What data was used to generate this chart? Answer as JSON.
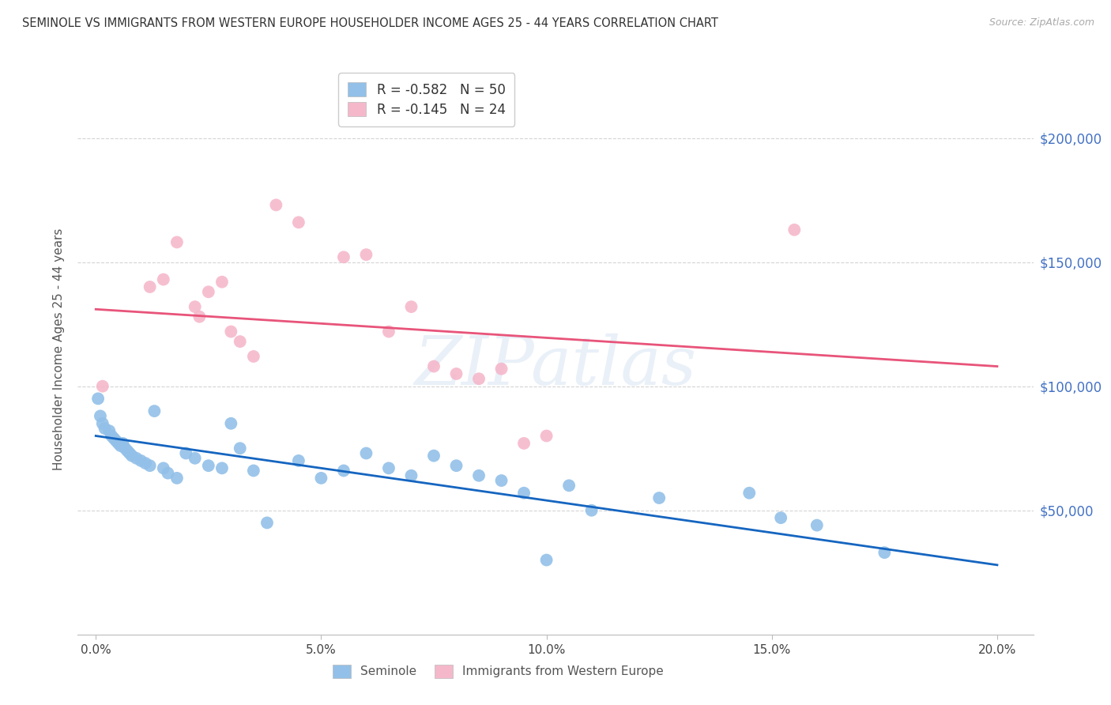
{
  "title": "SEMINOLE VS IMMIGRANTS FROM WESTERN EUROPE HOUSEHOLDER INCOME AGES 25 - 44 YEARS CORRELATION CHART",
  "source": "Source: ZipAtlas.com",
  "xlabel_ticks": [
    "0.0%",
    "5.0%",
    "10.0%",
    "15.0%",
    "20.0%"
  ],
  "xlabel_tick_vals": [
    0.0,
    5.0,
    10.0,
    15.0,
    20.0
  ],
  "ylabel_ticks": [
    "$50,000",
    "$100,000",
    "$150,000",
    "$200,000"
  ],
  "ylabel_tick_vals": [
    50000,
    100000,
    150000,
    200000
  ],
  "ylabel_label": "Householder Income Ages 25 - 44 years",
  "xlim": [
    -0.4,
    20.8
  ],
  "ylim": [
    0,
    230000
  ],
  "legend1_text": "R = -0.582   N = 50",
  "legend2_text": "R = -0.145   N = 24",
  "legend_labels": [
    "Seminole",
    "Immigrants from Western Europe"
  ],
  "blue_color": "#92c0e8",
  "pink_color": "#f5b8cb",
  "line_blue": "#1565c0",
  "line_pink": "#e8547a",
  "blue_scatter": [
    [
      0.05,
      95000
    ],
    [
      0.1,
      88000
    ],
    [
      0.15,
      85000
    ],
    [
      0.2,
      83000
    ],
    [
      0.3,
      82000
    ],
    [
      0.35,
      80000
    ],
    [
      0.4,
      79000
    ],
    [
      0.45,
      78000
    ],
    [
      0.5,
      77000
    ],
    [
      0.55,
      76000
    ],
    [
      0.6,
      77000
    ],
    [
      0.65,
      75000
    ],
    [
      0.7,
      74000
    ],
    [
      0.75,
      73000
    ],
    [
      0.8,
      72000
    ],
    [
      0.9,
      71000
    ],
    [
      1.0,
      70000
    ],
    [
      1.1,
      69000
    ],
    [
      1.2,
      68000
    ],
    [
      1.3,
      90000
    ],
    [
      1.5,
      67000
    ],
    [
      1.6,
      65000
    ],
    [
      1.8,
      63000
    ],
    [
      2.0,
      73000
    ],
    [
      2.2,
      71000
    ],
    [
      2.5,
      68000
    ],
    [
      2.8,
      67000
    ],
    [
      3.0,
      85000
    ],
    [
      3.2,
      75000
    ],
    [
      3.5,
      66000
    ],
    [
      3.8,
      45000
    ],
    [
      4.5,
      70000
    ],
    [
      5.0,
      63000
    ],
    [
      5.5,
      66000
    ],
    [
      6.0,
      73000
    ],
    [
      6.5,
      67000
    ],
    [
      7.0,
      64000
    ],
    [
      7.5,
      72000
    ],
    [
      8.0,
      68000
    ],
    [
      8.5,
      64000
    ],
    [
      9.0,
      62000
    ],
    [
      9.5,
      57000
    ],
    [
      10.0,
      30000
    ],
    [
      10.5,
      60000
    ],
    [
      11.0,
      50000
    ],
    [
      12.5,
      55000
    ],
    [
      14.5,
      57000
    ],
    [
      15.2,
      47000
    ],
    [
      16.0,
      44000
    ],
    [
      17.5,
      33000
    ]
  ],
  "pink_scatter": [
    [
      0.15,
      100000
    ],
    [
      1.2,
      140000
    ],
    [
      1.5,
      143000
    ],
    [
      1.8,
      158000
    ],
    [
      2.2,
      132000
    ],
    [
      2.3,
      128000
    ],
    [
      2.5,
      138000
    ],
    [
      2.8,
      142000
    ],
    [
      3.0,
      122000
    ],
    [
      3.2,
      118000
    ],
    [
      3.5,
      112000
    ],
    [
      4.0,
      173000
    ],
    [
      4.5,
      166000
    ],
    [
      5.5,
      152000
    ],
    [
      6.0,
      153000
    ],
    [
      6.5,
      122000
    ],
    [
      7.0,
      132000
    ],
    [
      7.5,
      108000
    ],
    [
      8.0,
      105000
    ],
    [
      8.5,
      103000
    ],
    [
      9.0,
      107000
    ],
    [
      9.5,
      77000
    ],
    [
      10.0,
      80000
    ],
    [
      15.5,
      163000
    ]
  ],
  "watermark_text": "ZIPatlas",
  "background_color": "#ffffff",
  "grid_color": "#d0d0d0",
  "blue_line_x": [
    0.0,
    20.0
  ],
  "blue_line_y": [
    80000,
    28000
  ],
  "pink_line_x": [
    0.0,
    20.0
  ],
  "pink_line_y": [
    131000,
    108000
  ]
}
